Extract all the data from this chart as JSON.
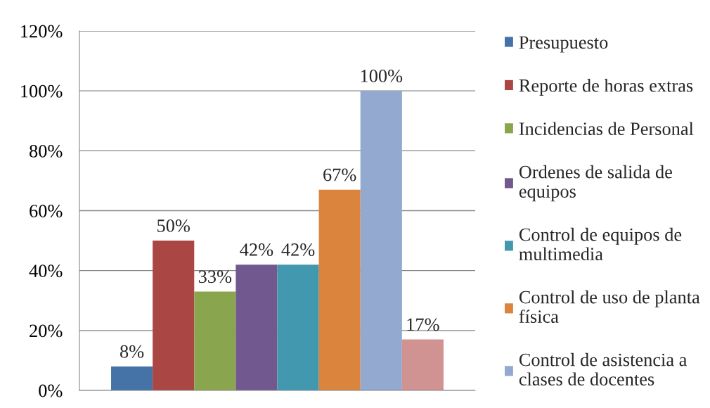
{
  "chart_data": {
    "type": "bar",
    "categories": [
      null
    ],
    "series": [
      {
        "name": "Presupuesto",
        "color": "#4572a7",
        "values": [
          8
        ],
        "value_labels": [
          "8%"
        ]
      },
      {
        "name": "Reporte de horas extras",
        "color": "#aa4643",
        "values": [
          50
        ],
        "value_labels": [
          "50%"
        ]
      },
      {
        "name": "Incidencias de Personal",
        "color": "#89a54e",
        "values": [
          33
        ],
        "value_labels": [
          "33%"
        ]
      },
      {
        "name": "Ordenes de salida de equipos",
        "color": "#71588f",
        "values": [
          42
        ],
        "value_labels": [
          "42%"
        ]
      },
      {
        "name": "Control de equipos de multimedia",
        "color": "#4198af",
        "values": [
          42
        ],
        "value_labels": [
          "42%"
        ]
      },
      {
        "name": "Control de uso de planta física",
        "color": "#db843d",
        "values": [
          67
        ],
        "value_labels": [
          "67%"
        ]
      },
      {
        "name": "Control de asistencia a clases de docentes",
        "color": "#93a9cf",
        "values": [
          100
        ],
        "value_labels": [
          "100%"
        ]
      },
      {
        "color": "#d19392",
        "values": [
          17
        ],
        "value_labels": [
          "17%"
        ]
      }
    ],
    "ylim": [
      0,
      120
    ],
    "yticks": [
      {
        "value": 0,
        "label": "0%"
      },
      {
        "value": 20,
        "label": "20%"
      },
      {
        "value": 40,
        "label": "40%"
      },
      {
        "value": 60,
        "label": "60%"
      },
      {
        "value": 80,
        "label": "80%"
      },
      {
        "value": 100,
        "label": "100%"
      },
      {
        "value": 120,
        "label": "120%"
      }
    ],
    "grid": "y",
    "legend": "right"
  }
}
